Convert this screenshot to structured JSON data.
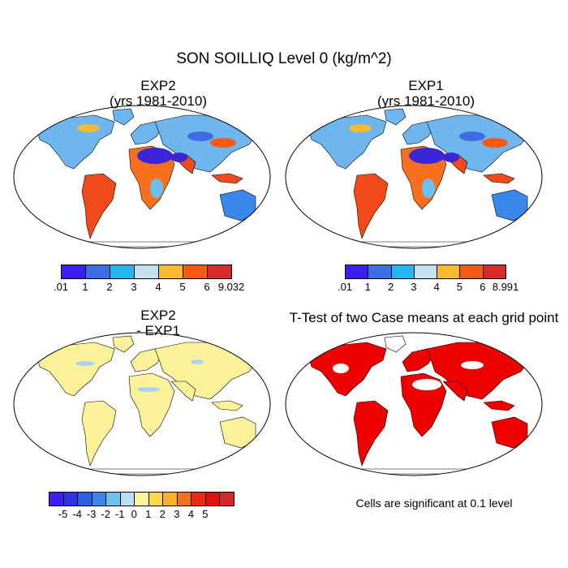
{
  "figure_title": "SON SOILLIQ Level 0 (kg/m^2)",
  "panels": {
    "exp2": {
      "title_line1": "EXP2",
      "title_line2": "(yrs 1981-2010)"
    },
    "exp1": {
      "title_line1": "EXP1",
      "title_line2": "(yrs 1981-2010)"
    },
    "diff": {
      "title_line1": "EXP2",
      "title_line2": "- EXP1"
    },
    "ttest": {
      "title": "T-Test of two Case means at each grid point",
      "note": "Cells are significant at 0.1 level"
    }
  },
  "colorbars": {
    "exp2": {
      "colors": [
        "#3b1ef2",
        "#3c6de3",
        "#23b6ef",
        "#c2e2f0",
        "#f7bb2d",
        "#f85a14",
        "#d72b2b"
      ],
      "labels": [
        ".01",
        "1",
        "2",
        "3",
        "4",
        "5",
        "6",
        "9.032"
      ]
    },
    "exp1": {
      "colors": [
        "#3b1ef2",
        "#3c6de3",
        "#23b6ef",
        "#c2e2f0",
        "#f7bb2d",
        "#f85a14",
        "#d72b2b"
      ],
      "labels": [
        ".01",
        "1",
        "2",
        "3",
        "4",
        "5",
        "6",
        "8.991"
      ]
    },
    "diff": {
      "colors": [
        "#3b1ef2",
        "#3232e6",
        "#2f5ee6",
        "#3a89ea",
        "#6cc0ee",
        "#b8e0f2",
        "#fff59a",
        "#ffd94a",
        "#fbb02a",
        "#f8701e",
        "#ec2a12",
        "#e01010",
        "#d22a2a"
      ],
      "labels": [
        "-5",
        "-4",
        "-3",
        "-2",
        "-1",
        "0",
        "1",
        "2",
        "3",
        "4",
        "5"
      ]
    }
  },
  "colors": {
    "diff_land": "#fcf29a",
    "diff_patch": "#a9d3ee",
    "ttest_sig": "#ee0000",
    "arid": "#3a26d8",
    "wet": "#f04a1a"
  }
}
